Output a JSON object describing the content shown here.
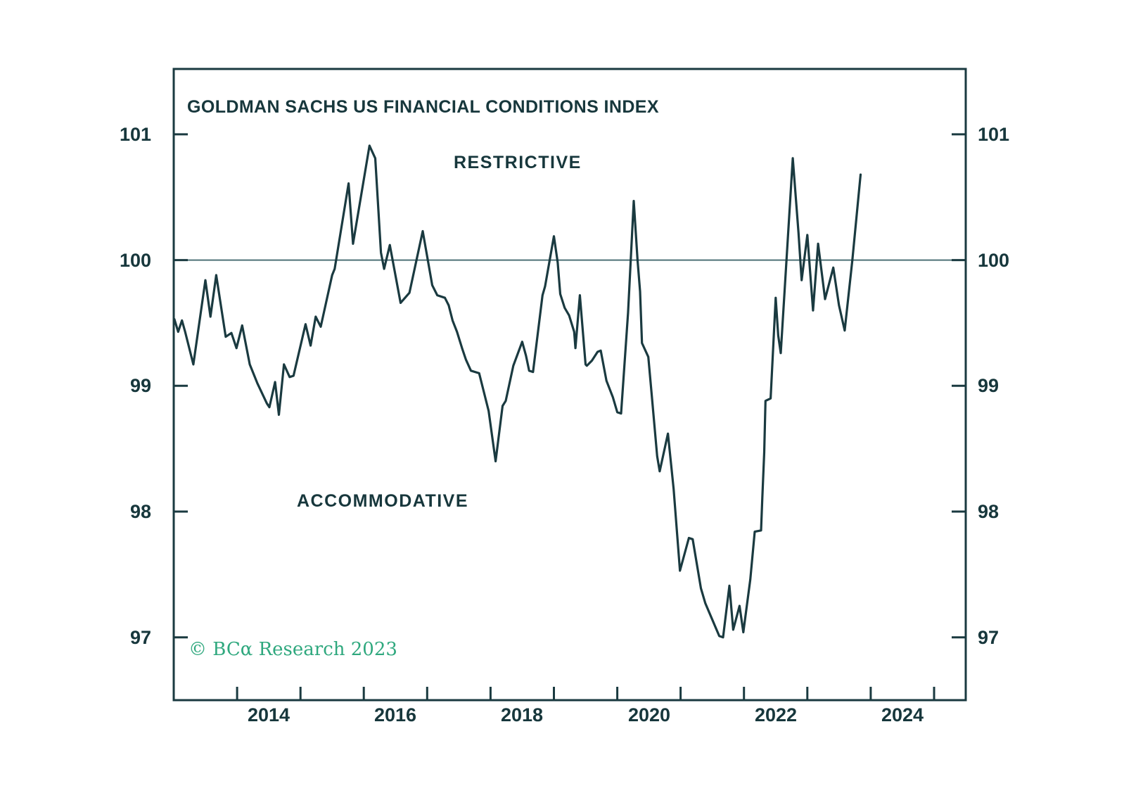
{
  "colors": {
    "line": "#1A3A40",
    "axis": "#1A3A40",
    "text": "#17373C",
    "reference_line": "#4E7177",
    "copyright": "#2FA87E",
    "background": "#FFFFFF"
  },
  "chart_data": {
    "type": "line",
    "title": "GOLDMAN SACHS US FINANCIAL CONDITIONS INDEX",
    "series_name": "Goldman Sachs US Financial Conditions Index",
    "annotations": {
      "restrictive": "RESTRICTIVE",
      "accommodative": "ACCOMMODATIVE"
    },
    "copyright": "© BCα Research 2023",
    "xlim": [
      2013,
      2025.5
    ],
    "ylim": [
      96.5,
      101.52
    ],
    "y_ticks": [
      101,
      100,
      99,
      98,
      97
    ],
    "y_tick_sides": "both",
    "x_ticks": [
      2014,
      2015,
      2016,
      2017,
      2018,
      2019,
      2020,
      2021,
      2022,
      2023,
      2024,
      2025
    ],
    "x_tick_labels": [
      {
        "text": "2014",
        "center": 2014.5
      },
      {
        "text": "2016",
        "center": 2016.5
      },
      {
        "text": "2018",
        "center": 2018.5
      },
      {
        "text": "2020",
        "center": 2020.5
      },
      {
        "text": "2022",
        "center": 2022.5
      },
      {
        "text": "2024",
        "center": 2024.5
      }
    ],
    "reference_line": 100,
    "grid": false,
    "legend": false,
    "points": [
      [
        2013.01,
        99.53
      ],
      [
        2013.07,
        99.43
      ],
      [
        2013.13,
        99.52
      ],
      [
        2013.18,
        99.43
      ],
      [
        2013.31,
        99.17
      ],
      [
        2013.5,
        99.84
      ],
      [
        2013.58,
        99.55
      ],
      [
        2013.67,
        99.88
      ],
      [
        2013.82,
        99.39
      ],
      [
        2013.91,
        99.42
      ],
      [
        2013.99,
        99.3
      ],
      [
        2014.08,
        99.48
      ],
      [
        2014.2,
        99.17
      ],
      [
        2014.32,
        99.02
      ],
      [
        2014.47,
        98.86
      ],
      [
        2014.51,
        98.83
      ],
      [
        2014.6,
        99.03
      ],
      [
        2014.66,
        98.77
      ],
      [
        2014.74,
        99.17
      ],
      [
        2014.83,
        99.07
      ],
      [
        2014.89,
        99.08
      ],
      [
        2015.08,
        99.49
      ],
      [
        2015.16,
        99.32
      ],
      [
        2015.24,
        99.55
      ],
      [
        2015.32,
        99.47
      ],
      [
        2015.5,
        99.88
      ],
      [
        2015.54,
        99.93
      ],
      [
        2015.76,
        100.61
      ],
      [
        2015.83,
        100.13
      ],
      [
        2016.09,
        100.91
      ],
      [
        2016.18,
        100.81
      ],
      [
        2016.27,
        100.06
      ],
      [
        2016.32,
        99.93
      ],
      [
        2016.41,
        100.12
      ],
      [
        2016.58,
        99.66
      ],
      [
        2016.72,
        99.74
      ],
      [
        2016.93,
        100.23
      ],
      [
        2017.08,
        99.8
      ],
      [
        2017.16,
        99.72
      ],
      [
        2017.28,
        99.7
      ],
      [
        2017.34,
        99.64
      ],
      [
        2017.4,
        99.52
      ],
      [
        2017.47,
        99.43
      ],
      [
        2017.55,
        99.3
      ],
      [
        2017.61,
        99.21
      ],
      [
        2017.69,
        99.12
      ],
      [
        2017.82,
        99.1
      ],
      [
        2017.97,
        98.8
      ],
      [
        2018.08,
        98.4
      ],
      [
        2018.19,
        98.84
      ],
      [
        2018.24,
        98.88
      ],
      [
        2018.36,
        99.16
      ],
      [
        2018.5,
        99.35
      ],
      [
        2018.56,
        99.24
      ],
      [
        2018.61,
        99.12
      ],
      [
        2018.67,
        99.11
      ],
      [
        2018.82,
        99.72
      ],
      [
        2018.86,
        99.79
      ],
      [
        2019.0,
        100.19
      ],
      [
        2019.06,
        99.98
      ],
      [
        2019.1,
        99.73
      ],
      [
        2019.17,
        99.62
      ],
      [
        2019.24,
        99.56
      ],
      [
        2019.32,
        99.43
      ],
      [
        2019.34,
        99.3
      ],
      [
        2019.41,
        99.72
      ],
      [
        2019.5,
        99.17
      ],
      [
        2019.52,
        99.16
      ],
      [
        2019.6,
        99.2
      ],
      [
        2019.69,
        99.27
      ],
      [
        2019.74,
        99.28
      ],
      [
        2019.83,
        99.04
      ],
      [
        2019.93,
        98.91
      ],
      [
        2020.0,
        98.79
      ],
      [
        2020.06,
        98.78
      ],
      [
        2020.17,
        99.58
      ],
      [
        2020.26,
        100.47
      ],
      [
        2020.32,
        100.0
      ],
      [
        2020.36,
        99.75
      ],
      [
        2020.39,
        99.34
      ],
      [
        2020.49,
        99.23
      ],
      [
        2020.54,
        98.95
      ],
      [
        2020.63,
        98.44
      ],
      [
        2020.67,
        98.32
      ],
      [
        2020.8,
        98.62
      ],
      [
        2020.89,
        98.18
      ],
      [
        2020.99,
        97.53
      ],
      [
        2021.13,
        97.79
      ],
      [
        2021.19,
        97.78
      ],
      [
        2021.32,
        97.39
      ],
      [
        2021.39,
        97.27
      ],
      [
        2021.61,
        97.01
      ],
      [
        2021.67,
        97.0
      ],
      [
        2021.77,
        97.41
      ],
      [
        2021.83,
        97.06
      ],
      [
        2021.93,
        97.25
      ],
      [
        2021.99,
        97.04
      ],
      [
        2022.1,
        97.46
      ],
      [
        2022.17,
        97.84
      ],
      [
        2022.27,
        97.85
      ],
      [
        2022.29,
        98.11
      ],
      [
        2022.32,
        98.47
      ],
      [
        2022.34,
        98.88
      ],
      [
        2022.42,
        98.9
      ],
      [
        2022.5,
        99.7
      ],
      [
        2022.54,
        99.4
      ],
      [
        2022.58,
        99.26
      ],
      [
        2022.77,
        100.81
      ],
      [
        2022.86,
        100.22
      ],
      [
        2022.91,
        99.84
      ],
      [
        2023.0,
        100.2
      ],
      [
        2023.09,
        99.6
      ],
      [
        2023.17,
        100.13
      ],
      [
        2023.28,
        99.69
      ],
      [
        2023.41,
        99.94
      ],
      [
        2023.5,
        99.64
      ],
      [
        2023.59,
        99.44
      ],
      [
        2023.71,
        100.0
      ],
      [
        2023.84,
        100.68
      ]
    ]
  }
}
